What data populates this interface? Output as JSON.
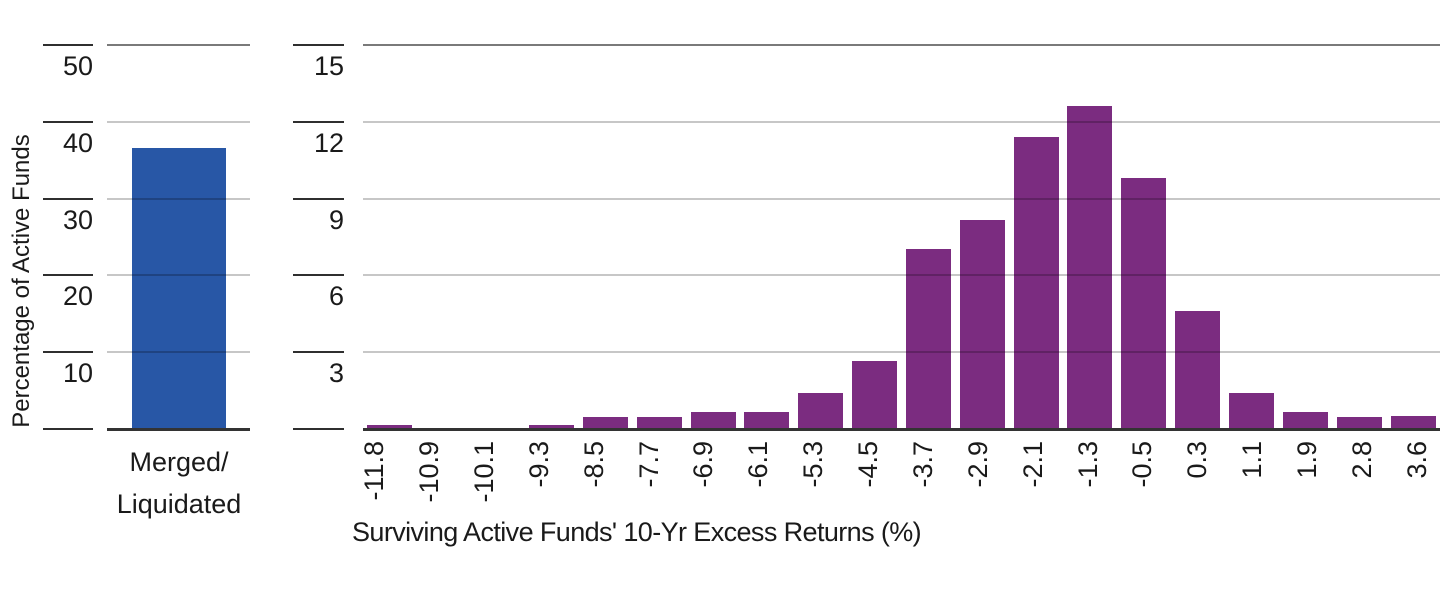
{
  "chart_data": [
    {
      "type": "bar",
      "title": "",
      "ylabel": "Percentage of Active Funds",
      "xlabel": "",
      "categories": [
        "Merged/Liquidated"
      ],
      "category_lines": [
        "Merged/",
        "Liquidated"
      ],
      "values": [
        36.6
      ],
      "ylim": [
        0,
        50
      ],
      "yticks": [
        10,
        20,
        30,
        40,
        50
      ],
      "bar_color": "#2857A6",
      "grid": true,
      "legend": "none"
    },
    {
      "type": "bar",
      "title": "",
      "ylabel": "",
      "xlabel": "Surviving Active Funds' 10-Yr Excess Returns (%)",
      "categories": [
        "-11.8",
        "-10.9",
        "-10.1",
        "-9.3",
        "-8.5",
        "-7.7",
        "-6.9",
        "-6.1",
        "-5.3",
        "-4.5",
        "-3.7",
        "-2.9",
        "-2.1",
        "-1.3",
        "-0.5",
        "0.3",
        "1.1",
        "1.9",
        "2.8",
        "3.6"
      ],
      "values": [
        0.15,
        0,
        0,
        0.15,
        0.45,
        0.45,
        0.65,
        0.65,
        1.4,
        2.65,
        7.05,
        8.15,
        11.4,
        12.6,
        9.8,
        4.6,
        1.4,
        0.65,
        0.45,
        0.5
      ],
      "ylim": [
        0,
        15
      ],
      "yticks": [
        3,
        6,
        9,
        12,
        15
      ],
      "bar_color": "#7B2C80",
      "grid": true,
      "legend": "none"
    }
  ],
  "colors": {
    "background": "#FFFFFF",
    "text": "#1A1A1A",
    "left_bar": "#2857A6",
    "right_bar": "#7B2C80",
    "gridline": "#C7C7C7",
    "top_rule": "#7A7A7A",
    "axis_baseline": "#333333"
  }
}
